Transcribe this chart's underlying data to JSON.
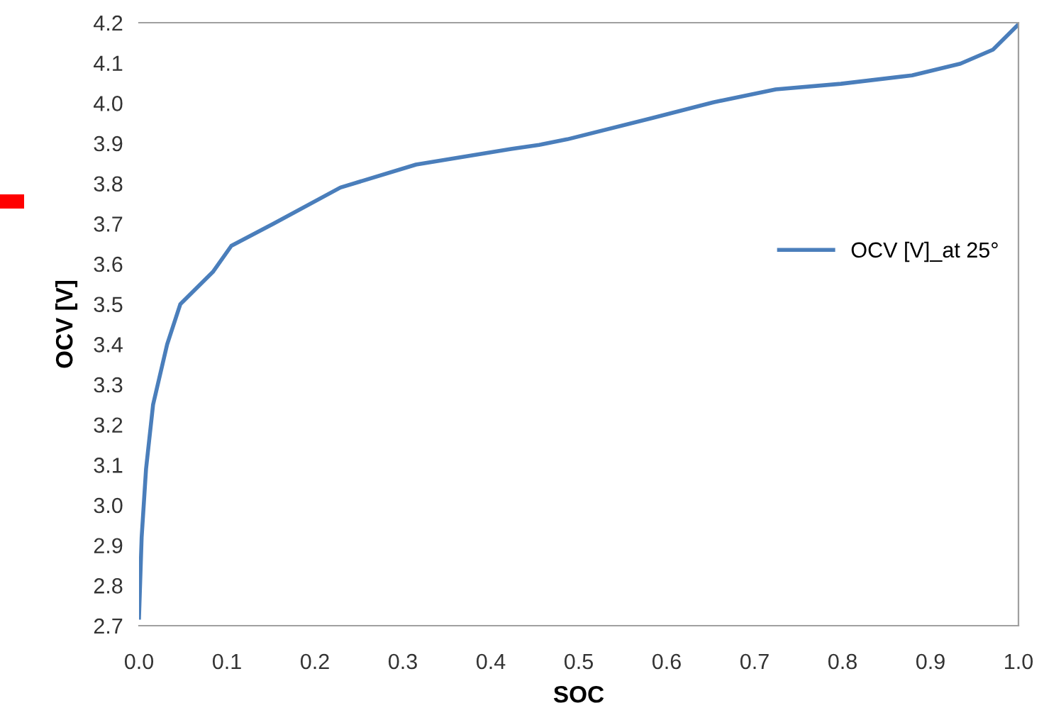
{
  "chart_data": {
    "type": "line",
    "xlabel": "SOC",
    "ylabel": "OCV [V]",
    "xlim": [
      0.0,
      1.0
    ],
    "xticks": [
      {
        "value": 0,
        "label": "0.0"
      },
      0.1,
      0.2,
      0.3,
      0.4,
      0.5,
      0.6,
      0.7,
      0.8,
      0.9,
      {
        "value": 1,
        "label": "1.0"
      }
    ],
    "ylim": [
      2.7,
      4.2
    ],
    "yticks": [
      2.7,
      2.8,
      2.9,
      {
        "value": 3,
        "label": "3.0"
      },
      3.1,
      3.2,
      3.3,
      3.4,
      3.5,
      3.6,
      3.7,
      3.8,
      3.9,
      {
        "value": 4,
        "label": "4.0"
      },
      4.1,
      4.2
    ],
    "grid": false,
    "legend": "right",
    "marker": "none",
    "line_style": "solid",
    "series": [
      {
        "name": "OCV [V]_at 25°",
        "color": "#4a7ebb",
        "x": [
          0.0,
          0.003,
          0.008,
          0.016,
          0.032,
          0.047,
          0.084,
          0.105,
          0.153,
          0.229,
          0.315,
          0.423,
          0.455,
          0.487,
          0.584,
          0.653,
          0.724,
          0.798,
          0.879,
          0.934,
          0.971,
          1.0
        ],
        "values": [
          2.72,
          2.92,
          3.09,
          3.25,
          3.4,
          3.5,
          3.58,
          3.645,
          3.7,
          3.79,
          3.847,
          3.886,
          3.896,
          3.91,
          3.963,
          4.002,
          4.034,
          4.048,
          4.069,
          4.098,
          4.133,
          4.196
        ]
      }
    ]
  }
}
